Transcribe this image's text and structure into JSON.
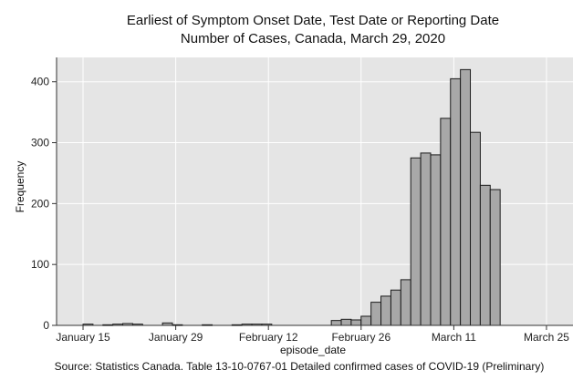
{
  "chart_data": {
    "type": "bar",
    "title": "Earliest of Symptom Onset Date, Test Date or Reporting Date",
    "subtitle": "Number of Cases, Canada, March 29, 2020",
    "xlabel": "episode_date",
    "ylabel": "Frequency",
    "source": "Source: Statistics Canada. Table 13-10-0767-01 Detailed confirmed cases of COVID-19 (Preliminary)",
    "ylim": [
      0,
      440
    ],
    "yticks": [
      0,
      100,
      200,
      300,
      400
    ],
    "grid": true,
    "xticks": [
      {
        "label": "January 15",
        "day": 15
      },
      {
        "label": "January 29",
        "day": 29
      },
      {
        "label": "February 12",
        "day": 43
      },
      {
        "label": "February 26",
        "day": 57
      },
      {
        "label": "March 11",
        "day": 71
      },
      {
        "label": "March 25",
        "day": 85
      }
    ],
    "bins": [
      {
        "start": 15,
        "value": 2
      },
      {
        "start": 18,
        "value": 1
      },
      {
        "start": 19.5,
        "value": 2
      },
      {
        "start": 21,
        "value": 3
      },
      {
        "start": 22.5,
        "value": 2
      },
      {
        "start": 27,
        "value": 4
      },
      {
        "start": 28.5,
        "value": 1
      },
      {
        "start": 33,
        "value": 1
      },
      {
        "start": 37.5,
        "value": 1
      },
      {
        "start": 39,
        "value": 2
      },
      {
        "start": 40.5,
        "value": 2
      },
      {
        "start": 42,
        "value": 2
      },
      {
        "start": 52.5,
        "value": 8
      },
      {
        "start": 54,
        "value": 10
      },
      {
        "start": 55.5,
        "value": 9
      },
      {
        "start": 57,
        "value": 15
      },
      {
        "start": 58.5,
        "value": 38
      },
      {
        "start": 60,
        "value": 48
      },
      {
        "start": 61.5,
        "value": 58
      },
      {
        "start": 63,
        "value": 75
      },
      {
        "start": 64.5,
        "value": 275
      },
      {
        "start": 66,
        "value": 283
      },
      {
        "start": 67.5,
        "value": 280
      },
      {
        "start": 69,
        "value": 340
      },
      {
        "start": 70.5,
        "value": 405
      },
      {
        "start": 72,
        "value": 420
      },
      {
        "start": 73.5,
        "value": 317
      },
      {
        "start": 75,
        "value": 230
      },
      {
        "start": 76.5,
        "value": 223
      }
    ],
    "bin_width": 1.5
  },
  "colors": {
    "plot_bg": "#e5e5e5",
    "bar_fill": "#a8a8a8",
    "bar_stroke": "#1a1a1a",
    "grid": "#ffffff"
  }
}
